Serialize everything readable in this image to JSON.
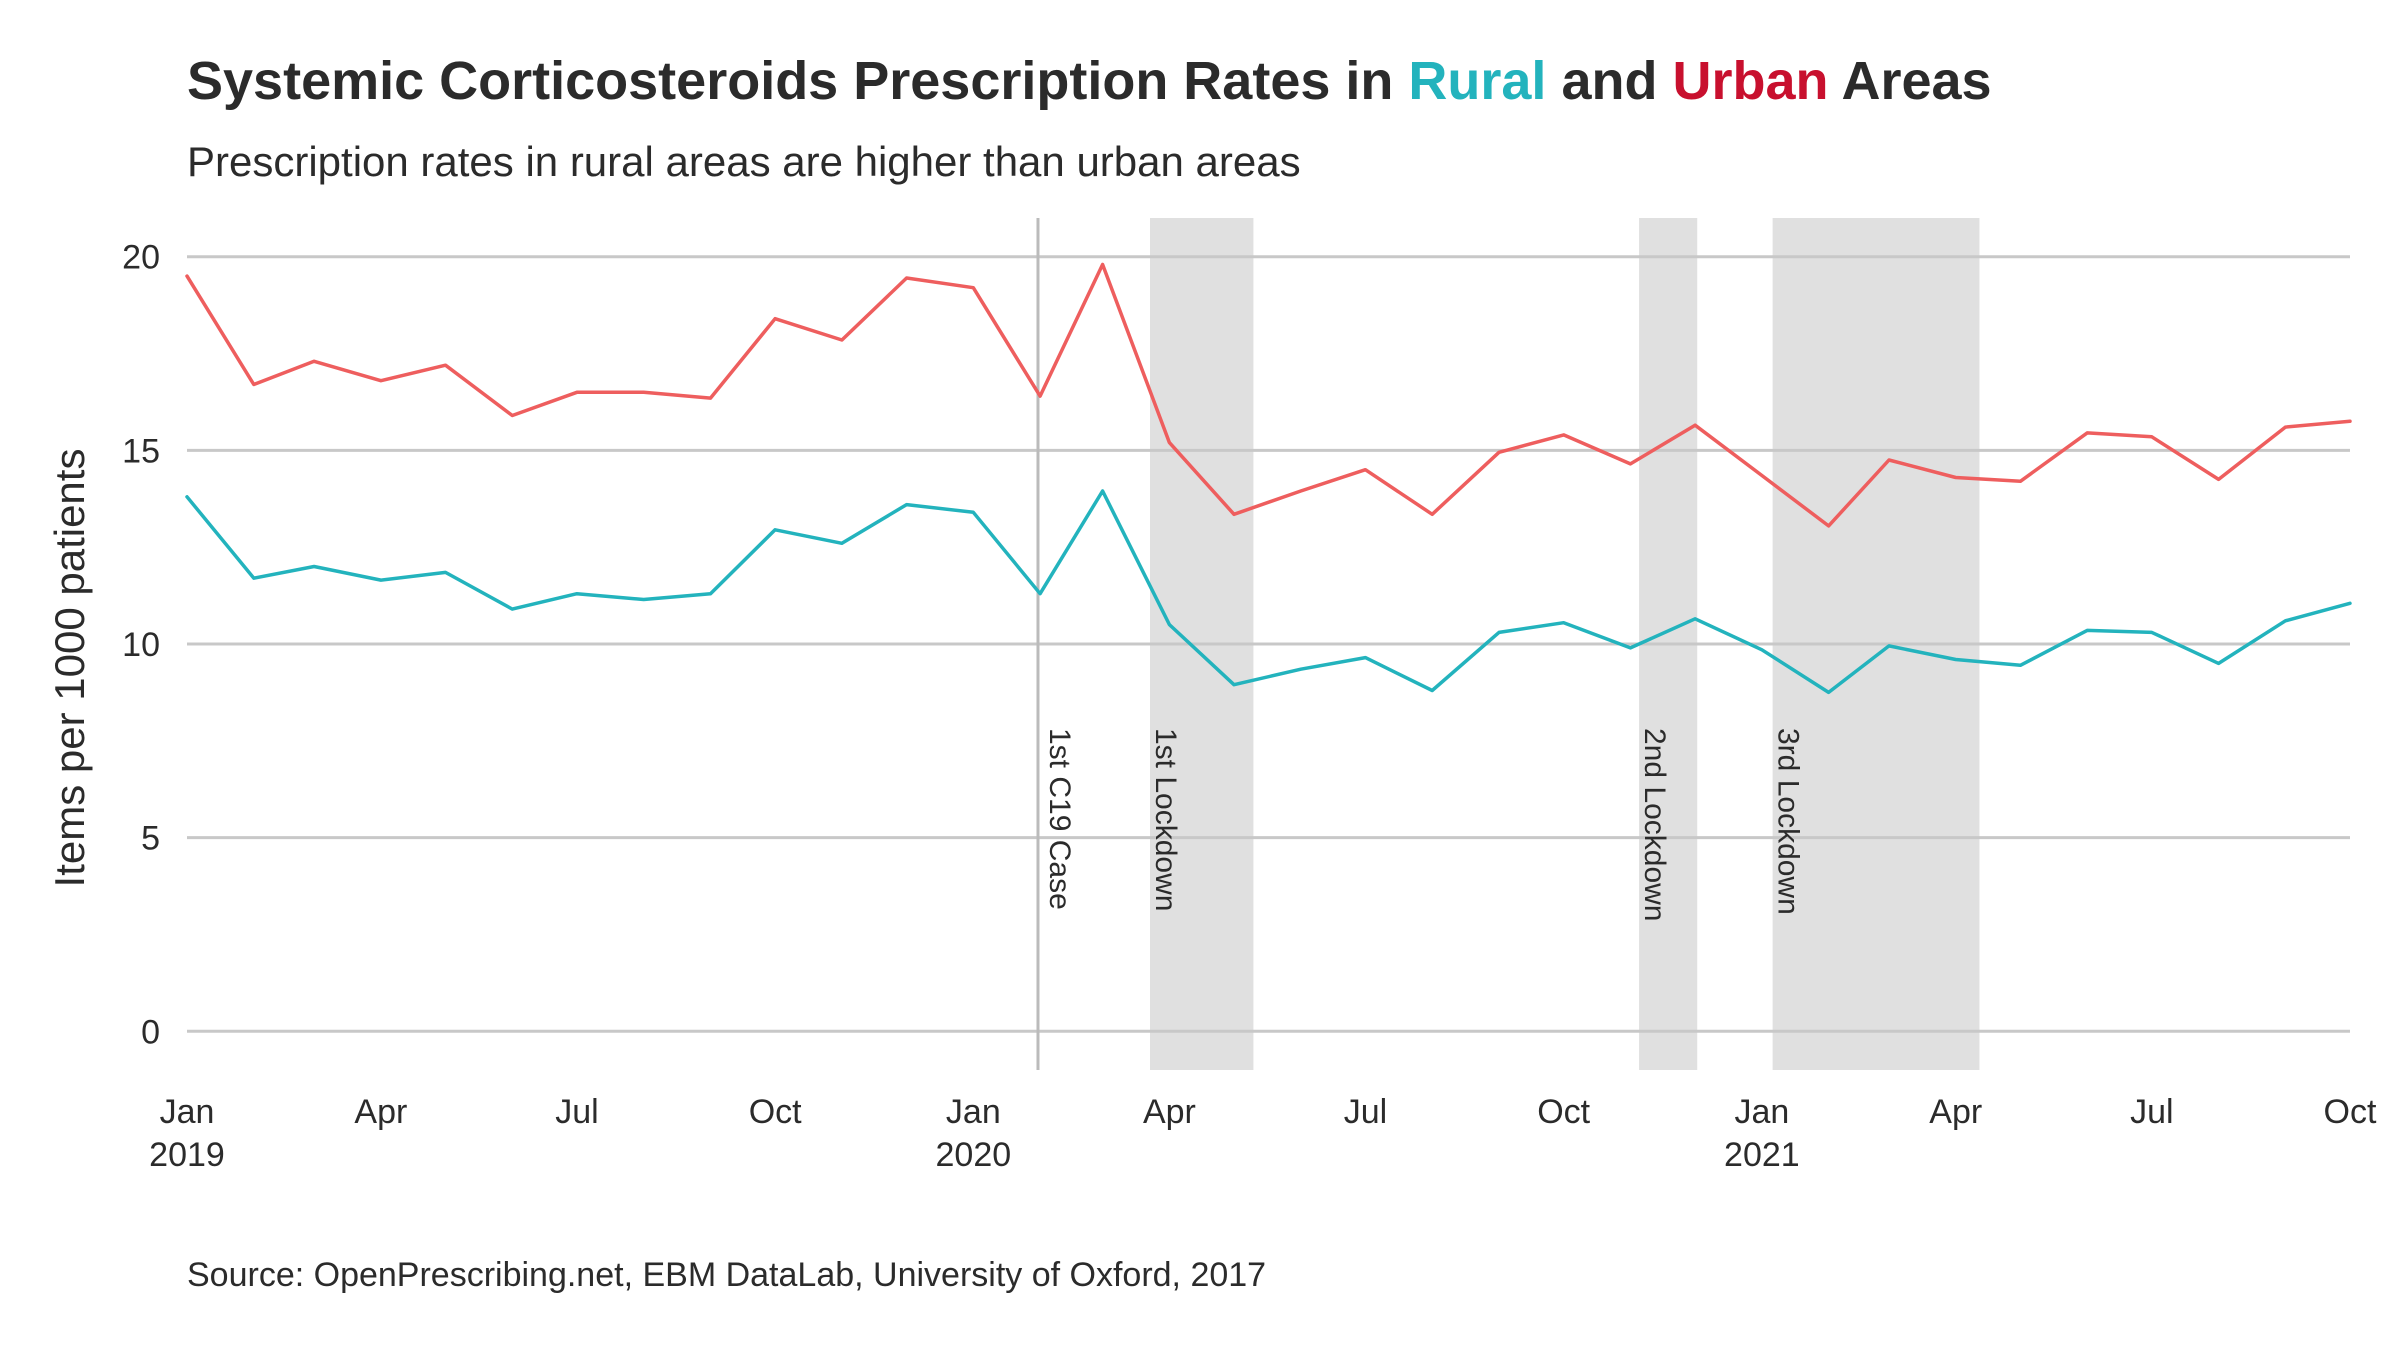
{
  "title": {
    "prefix": "Systemic Corticosteroids Prescription Rates in ",
    "rural": "Rural",
    "middle": " and ",
    "urban": "Urban",
    "suffix": " Areas"
  },
  "subtitle": "Prescription rates in rural areas are higher than urban areas",
  "caption": "Source: OpenPrescribing.net, EBM DataLab, University of Oxford, 2017",
  "colors": {
    "rural": "#23b3bd",
    "urban": "#ee5e5e",
    "title_rural": "#23b3bd",
    "title_urban": "#c8102e",
    "grid": "#c8c8c8",
    "shade": "#e0e0e0",
    "vline": "#bbbbbb",
    "text": "#2b2b2b"
  },
  "chart_data": {
    "type": "line",
    "title": "Systemic Corticosteroids Prescription Rates in Rural and Urban Areas",
    "subtitle": "Prescription rates in rural areas are higher than urban areas",
    "xlabel": "",
    "ylabel": "Items per 1000 patients",
    "ylim": [
      -1,
      21
    ],
    "xlim": [
      "2019-01",
      "2021-10"
    ],
    "yticks": [
      0,
      5,
      10,
      15,
      20
    ],
    "xticks": [
      {
        "date": "2019-01",
        "label": "Jan",
        "year": "2019"
      },
      {
        "date": "2019-04",
        "label": "Apr",
        "year": ""
      },
      {
        "date": "2019-07",
        "label": "Jul",
        "year": ""
      },
      {
        "date": "2019-10",
        "label": "Oct",
        "year": ""
      },
      {
        "date": "2020-01",
        "label": "Jan",
        "year": "2020"
      },
      {
        "date": "2020-04",
        "label": "Apr",
        "year": ""
      },
      {
        "date": "2020-07",
        "label": "Jul",
        "year": ""
      },
      {
        "date": "2020-10",
        "label": "Oct",
        "year": ""
      },
      {
        "date": "2021-01",
        "label": "Jan",
        "year": "2021"
      },
      {
        "date": "2021-04",
        "label": "Apr",
        "year": ""
      },
      {
        "date": "2021-07",
        "label": "Jul",
        "year": ""
      },
      {
        "date": "2021-10",
        "label": "Oct",
        "year": ""
      }
    ],
    "grid": "horizontal",
    "legend": "none",
    "x": [
      "2019-01",
      "2019-02",
      "2019-03",
      "2019-04",
      "2019-05",
      "2019-06",
      "2019-07",
      "2019-08",
      "2019-09",
      "2019-10",
      "2019-11",
      "2019-12",
      "2020-01",
      "2020-02",
      "2020-03",
      "2020-04",
      "2020-05",
      "2020-06",
      "2020-07",
      "2020-08",
      "2020-09",
      "2020-10",
      "2020-11",
      "2020-12",
      "2021-01",
      "2021-02",
      "2021-03",
      "2021-04",
      "2021-05",
      "2021-06",
      "2021-07",
      "2021-08",
      "2021-09",
      "2021-10"
    ],
    "series": [
      {
        "key": "urban",
        "values": [
          19.5,
          16.7,
          17.3,
          16.8,
          17.2,
          15.9,
          16.5,
          16.5,
          16.35,
          18.4,
          17.85,
          19.45,
          19.2,
          16.4,
          19.8,
          15.2,
          13.35,
          13.95,
          14.5,
          13.35,
          14.95,
          15.4,
          14.65,
          15.65,
          14.35,
          13.05,
          14.75,
          14.3,
          14.2,
          15.45,
          15.35,
          14.25,
          15.6,
          15.75
        ]
      },
      {
        "key": "rural",
        "values": [
          13.8,
          11.7,
          12.0,
          11.65,
          11.85,
          10.9,
          11.3,
          11.15,
          11.3,
          12.95,
          12.6,
          13.6,
          13.4,
          11.3,
          13.95,
          10.5,
          8.95,
          9.35,
          9.65,
          8.8,
          10.3,
          10.55,
          9.9,
          10.65,
          9.85,
          8.75,
          9.95,
          9.6,
          9.45,
          10.35,
          10.3,
          9.5,
          10.6,
          11.05
        ]
      }
    ],
    "shaded_periods": [
      {
        "start": "2020-03-23",
        "end": "2020-05-10",
        "label": "1st Lockdown"
      },
      {
        "start": "2020-11-05",
        "end": "2020-12-02",
        "label": "2nd Lockdown"
      },
      {
        "start": "2021-01-06",
        "end": "2021-04-12",
        "label": "3rd Lockdown"
      }
    ],
    "annotations": [
      {
        "date": "2020-01-31",
        "label": "1st C19 Case"
      }
    ]
  }
}
